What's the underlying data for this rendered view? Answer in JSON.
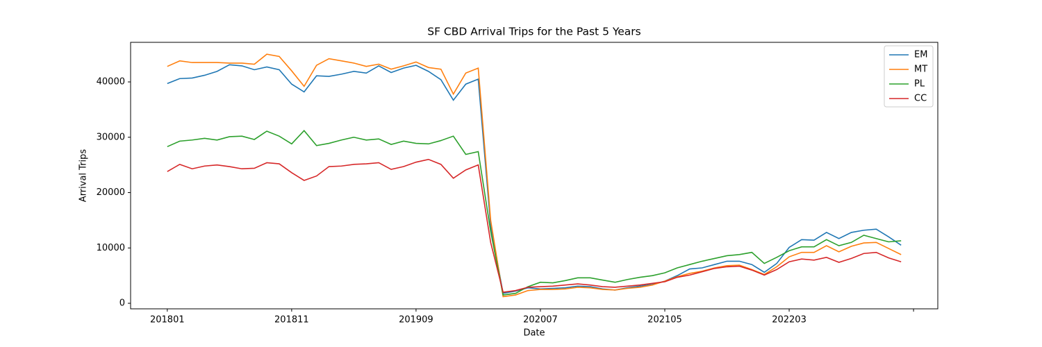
{
  "chart_data": {
    "type": "line",
    "title": "SF CBD Arrival Trips for the Past 5 Years",
    "x_label": "Date",
    "y_label": "Arrival Trips",
    "categories": [
      "201801",
      null,
      null,
      null,
      null,
      null,
      null,
      null,
      null,
      null,
      "201811",
      null,
      null,
      null,
      null,
      null,
      null,
      null,
      null,
      null,
      "201909",
      null,
      null,
      null,
      null,
      null,
      null,
      null,
      null,
      null,
      "202007",
      null,
      null,
      null,
      null,
      null,
      null,
      null,
      null,
      null,
      "202105",
      null,
      null,
      null,
      null,
      null,
      null,
      null,
      null,
      null,
      "202203",
      null,
      null,
      null,
      null,
      null,
      null,
      null,
      null,
      null
    ],
    "xlim": [
      -2.95,
      61.95
    ],
    "xticks": [
      0,
      10,
      20,
      30,
      40,
      50,
      60
    ],
    "ylim": [
      -1000,
      47150
    ],
    "yticks": [
      0,
      10000,
      20000,
      30000,
      40000
    ],
    "grid": false,
    "legend": "upper right",
    "series": [
      {
        "name": "EM",
        "color": "#1f77b4",
        "values": [
          39700,
          40600,
          40700,
          41200,
          41900,
          43100,
          42900,
          42200,
          42700,
          42200,
          39600,
          38200,
          41100,
          41000,
          41400,
          41900,
          41600,
          42900,
          41700,
          42500,
          43000,
          41900,
          40400,
          36700,
          39600,
          40500,
          14000,
          1800,
          2200,
          2800,
          2600,
          2700,
          2800,
          3100,
          3000,
          2600,
          2400,
          2800,
          3100,
          3400,
          4000,
          5000,
          6200,
          6400,
          7000,
          7600,
          7600,
          7000,
          5600,
          7200,
          10100,
          11500,
          11400,
          12800,
          11700,
          12800,
          13200,
          13400,
          12000,
          10500
        ]
      },
      {
        "name": "MT",
        "color": "#ff7f0e",
        "values": [
          42800,
          43800,
          43500,
          43500,
          43500,
          43400,
          43400,
          43200,
          45000,
          44600,
          42000,
          39200,
          43000,
          44200,
          43800,
          43400,
          42800,
          43200,
          42300,
          42900,
          43600,
          42600,
          42300,
          37800,
          41600,
          42500,
          15000,
          1200,
          1500,
          2300,
          2500,
          2500,
          2600,
          2900,
          2800,
          2500,
          2400,
          2700,
          2900,
          3300,
          4000,
          4800,
          5400,
          5800,
          6400,
          6800,
          6900,
          6100,
          5200,
          6600,
          8400,
          9200,
          9200,
          10400,
          9300,
          10300,
          10900,
          11000,
          9900,
          8800
        ]
      },
      {
        "name": "PL",
        "color": "#2ca02c",
        "values": [
          28300,
          29300,
          29500,
          29800,
          29500,
          30100,
          30200,
          29600,
          31100,
          30200,
          28800,
          31200,
          28500,
          28900,
          29500,
          30000,
          29500,
          29700,
          28700,
          29300,
          28900,
          28800,
          29400,
          30200,
          26900,
          27400,
          13000,
          1500,
          1800,
          3000,
          3800,
          3700,
          4100,
          4600,
          4600,
          4200,
          3800,
          4300,
          4700,
          5000,
          5500,
          6400,
          7000,
          7600,
          8100,
          8600,
          8800,
          9200,
          7200,
          8300,
          9500,
          10200,
          10200,
          11500,
          10400,
          11000,
          12300,
          11700,
          11100,
          11300
        ]
      },
      {
        "name": "CC",
        "color": "#d62728",
        "values": [
          23800,
          25100,
          24300,
          24800,
          25000,
          24700,
          24300,
          24400,
          25400,
          25200,
          23600,
          22200,
          23000,
          24700,
          24800,
          25100,
          25200,
          25400,
          24200,
          24700,
          25500,
          26000,
          25100,
          22600,
          24100,
          25000,
          11000,
          2000,
          2300,
          2900,
          3000,
          3100,
          3300,
          3500,
          3300,
          3000,
          2900,
          3100,
          3300,
          3600,
          3900,
          4700,
          5100,
          5700,
          6300,
          6600,
          6700,
          6000,
          5100,
          6100,
          7500,
          8000,
          7800,
          8300,
          7400,
          8100,
          9000,
          9200,
          8200,
          7500
        ]
      }
    ]
  }
}
